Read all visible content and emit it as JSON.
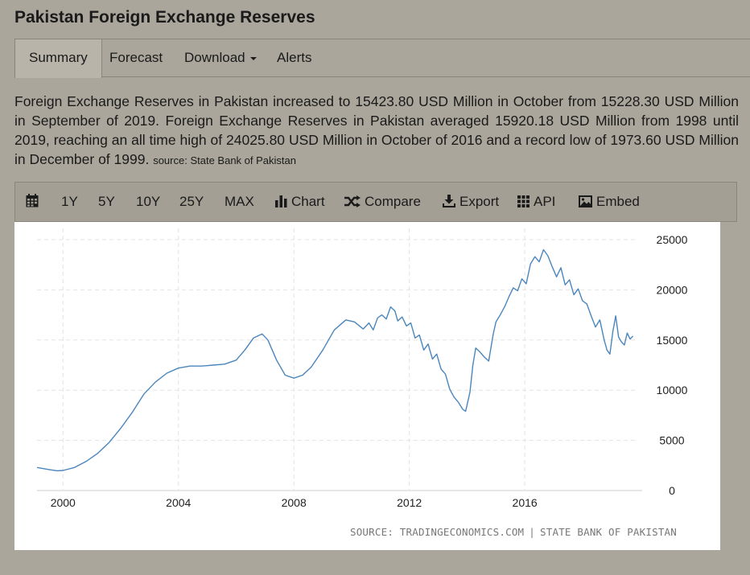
{
  "page": {
    "title": "Pakistan Foreign Exchange Reserves"
  },
  "tabs": [
    {
      "label": "Summary",
      "active": true
    },
    {
      "label": "Forecast"
    },
    {
      "label": "Download",
      "dropdown": true
    },
    {
      "label": "Alerts"
    }
  ],
  "summary": {
    "text": "Foreign Exchange Reserves in Pakistan increased to 15423.80 USD Million in October from 15228.30 USD Million in September of 2019. Foreign Exchange Reserves in Pakistan averaged 15920.18 USD Million from 1998 until 2019, reaching an all time high of 24025.80 USD Million in October of 2016 and a record low of 1973.60 USD Million in December of 1999.",
    "source": "source: State Bank of Pakistan"
  },
  "toolbar": {
    "calendar_icon": "calendar-icon",
    "ranges": [
      "1Y",
      "5Y",
      "10Y",
      "25Y",
      "MAX"
    ],
    "chart_label": "Chart",
    "compare_label": "Compare",
    "export_label": "Export",
    "api_label": "API",
    "embed_label": "Embed"
  },
  "chart_source": {
    "left": "SOURCE: TRADINGECONOMICS.COM",
    "separator": "|",
    "right": "STATE BANK OF PAKISTAN"
  },
  "chart_data": {
    "type": "line",
    "title": "",
    "xlabel": "",
    "ylabel": "",
    "color": "#4a86bd",
    "xlim": [
      1999.1,
      2019.9
    ],
    "ylim": [
      0,
      25000
    ],
    "x_ticks": [
      2000,
      2004,
      2008,
      2012,
      2016
    ],
    "y_ticks": [
      0,
      5000,
      10000,
      15000,
      20000,
      25000
    ],
    "y_axis_side": "right",
    "grid": true,
    "legend": "none",
    "series": [
      {
        "x": [
          1999.1,
          1999.5,
          1999.8,
          2000.0,
          2000.4,
          2000.8,
          2001.2,
          2001.6,
          2002.0,
          2002.4,
          2002.8,
          2003.2,
          2003.6,
          2004.0,
          2004.4,
          2004.8,
          2005.2,
          2005.6,
          2006.0,
          2006.3,
          2006.6,
          2006.9,
          2007.1,
          2007.4,
          2007.7,
          2008.0,
          2008.3,
          2008.6,
          2009.0,
          2009.4,
          2009.8,
          2010.1,
          2010.4,
          2010.6,
          2010.75,
          2010.9,
          2011.05,
          2011.2,
          2011.35,
          2011.5,
          2011.6,
          2011.75,
          2011.9,
          2012.05,
          2012.2,
          2012.35,
          2012.5,
          2012.65,
          2012.8,
          2012.95,
          2013.1,
          2013.25,
          2013.4,
          2013.55,
          2013.7,
          2013.85,
          2013.95,
          2014.1,
          2014.2,
          2014.3,
          2014.45,
          2014.6,
          2014.75,
          2014.9,
          2015.0,
          2015.15,
          2015.3,
          2015.45,
          2015.6,
          2015.75,
          2015.9,
          2016.05,
          2016.2,
          2016.35,
          2016.5,
          2016.65,
          2016.8,
          2016.95,
          2017.1,
          2017.25,
          2017.4,
          2017.55,
          2017.7,
          2017.85,
          2018.0,
          2018.15,
          2018.3,
          2018.45,
          2018.6,
          2018.75,
          2018.85,
          2018.95,
          2019.05,
          2019.15,
          2019.25,
          2019.35,
          2019.45,
          2019.55,
          2019.65,
          2019.75
        ],
        "y": [
          2300,
          2100,
          1970,
          2000,
          2300,
          2900,
          3700,
          4800,
          6200,
          7800,
          9600,
          10800,
          11700,
          12200,
          12400,
          12400,
          12500,
          12600,
          13000,
          14000,
          15200,
          15600,
          15000,
          13000,
          11500,
          11200,
          11500,
          12300,
          14000,
          16000,
          17000,
          16800,
          16100,
          16700,
          16000,
          17200,
          17500,
          17100,
          18300,
          17900,
          16900,
          17300,
          16400,
          16700,
          15200,
          15500,
          14000,
          14600,
          13100,
          13600,
          12100,
          11600,
          10100,
          9300,
          8800,
          8100,
          7900,
          9800,
          12500,
          14200,
          13800,
          13300,
          12900,
          15500,
          16800,
          17500,
          18300,
          19300,
          20200,
          19900,
          21100,
          20600,
          22600,
          23300,
          22800,
          24000,
          23400,
          22300,
          21300,
          22200,
          20500,
          21000,
          19500,
          20100,
          18900,
          18600,
          17400,
          16300,
          17000,
          15000,
          14000,
          13600,
          15800,
          17400,
          15300,
          14800,
          14500,
          15700,
          15100,
          15400
        ]
      }
    ]
  }
}
